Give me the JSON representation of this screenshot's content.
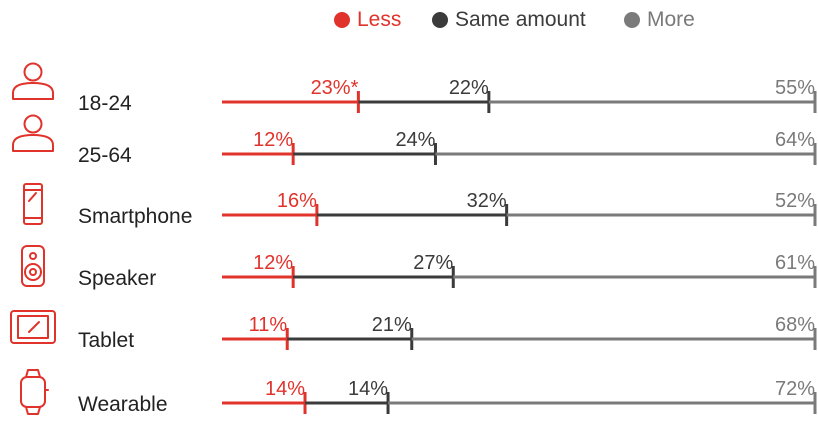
{
  "colors": {
    "less": "#e0332b",
    "same": "#3b3b3b",
    "more": "#7a7a7a",
    "icon": "#e0332b",
    "label": "#222222"
  },
  "legend": {
    "items": [
      {
        "label": "Less",
        "key": "less",
        "icon": "red-dot-icon"
      },
      {
        "label": "Same amount",
        "key": "same",
        "icon": "dark-dot-icon"
      },
      {
        "label": "More",
        "key": "more",
        "icon": "gray-dot-icon"
      }
    ]
  },
  "chart_data": {
    "type": "bar",
    "stacked": true,
    "orientation": "horizontal",
    "categories": [
      "18-24",
      "25-64",
      "Smartphone",
      "Speaker",
      "Tablet",
      "Wearable"
    ],
    "icons": [
      "person-icon",
      "person-icon",
      "smartphone-icon",
      "speaker-icon",
      "tablet-icon",
      "wearable-icon"
    ],
    "series": [
      {
        "name": "Less",
        "values": [
          23,
          12,
          16,
          12,
          11,
          14
        ],
        "labels": [
          "23%*",
          "12%",
          "16%",
          "12%",
          "11%",
          "14%"
        ]
      },
      {
        "name": "Same amount",
        "values": [
          22,
          24,
          32,
          27,
          21,
          14
        ],
        "labels": [
          "22%",
          "24%",
          "32%",
          "27%",
          "21%",
          "14%"
        ]
      },
      {
        "name": "More",
        "values": [
          55,
          64,
          52,
          61,
          68,
          72
        ],
        "labels": [
          "55%",
          "64%",
          "52%",
          "61%",
          "68%",
          "72%"
        ]
      }
    ],
    "xlim": [
      0,
      100
    ],
    "grid": false,
    "legend_position": "top-right"
  }
}
